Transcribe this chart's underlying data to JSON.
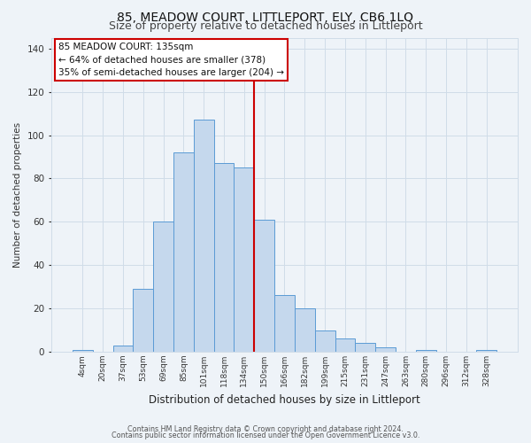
{
  "title": "85, MEADOW COURT, LITTLEPORT, ELY, CB6 1LQ",
  "subtitle": "Size of property relative to detached houses in Littleport",
  "xlabel": "Distribution of detached houses by size in Littleport",
  "ylabel": "Number of detached properties",
  "footer_line1": "Contains HM Land Registry data © Crown copyright and database right 2024.",
  "footer_line2": "Contains public sector information licensed under the Open Government Licence v3.0.",
  "annotation_title": "85 MEADOW COURT: 135sqm",
  "annotation_line2": "← 64% of detached houses are smaller (378)",
  "annotation_line3": "35% of semi-detached houses are larger (204) →",
  "bar_labels": [
    "4sqm",
    "20sqm",
    "37sqm",
    "53sqm",
    "69sqm",
    "85sqm",
    "101sqm",
    "118sqm",
    "134sqm",
    "150sqm",
    "166sqm",
    "182sqm",
    "199sqm",
    "215sqm",
    "231sqm",
    "247sqm",
    "263sqm",
    "280sqm",
    "296sqm",
    "312sqm",
    "328sqm"
  ],
  "bar_heights": [
    1,
    0,
    3,
    29,
    60,
    92,
    107,
    87,
    85,
    61,
    26,
    20,
    10,
    6,
    4,
    2,
    0,
    1,
    0,
    0,
    1
  ],
  "bar_color": "#c5d8ed",
  "bar_edge_color": "#5b9bd5",
  "grid_color": "#d0dce8",
  "background_color": "#eef3f8",
  "vline_x": 8.5,
  "vline_color": "#cc0000",
  "ylim": [
    0,
    145
  ],
  "title_fontsize": 10,
  "subtitle_fontsize": 9,
  "annotation_box_color": "#ffffff",
  "annotation_box_edge_color": "#cc0000",
  "ann_fontsize": 7.5
}
